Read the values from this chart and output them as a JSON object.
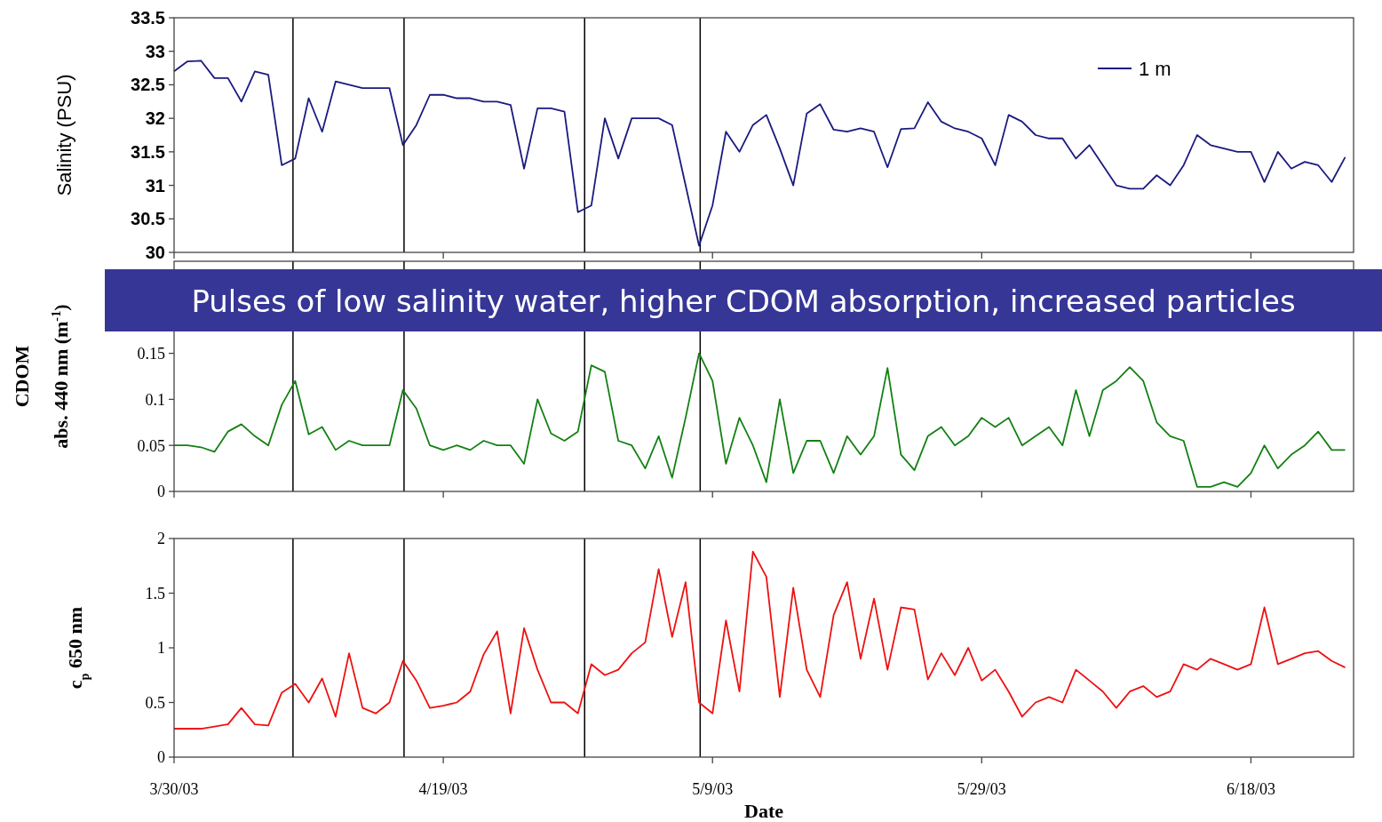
{
  "chart_data": [
    {
      "type": "line",
      "ylabel": "Salinity (PSU)",
      "xlim": [
        "2003-03-30",
        "2003-06-25T15:00"
      ],
      "xticks": [
        {
          "value": "2003-03-30",
          "label": null
        },
        {
          "value": "2003-04-19",
          "label": null
        },
        {
          "value": "2003-05-09",
          "label": null
        },
        {
          "value": "2003-05-29",
          "label": null
        },
        {
          "value": "2003-06-18",
          "label": null
        }
      ],
      "ylim": [
        30,
        33.5
      ],
      "yticks": [
        30,
        30.5,
        31,
        31.5,
        32,
        32.5,
        33,
        33.5
      ],
      "tick_labels": "y",
      "legend": "top right",
      "ref_lines": [
        {
          "axis": "x",
          "value": "2003-04-07T20:00"
        },
        {
          "axis": "x",
          "value": "2003-04-16T02:00"
        },
        {
          "axis": "x",
          "value": "2003-04-29T12:00"
        },
        {
          "axis": "x",
          "value": "2003-05-08T02:00"
        }
      ],
      "x": [
        "2003-03-30",
        "2003-03-31",
        "2003-04-01",
        "2003-04-02",
        "2003-04-03",
        "2003-04-04",
        "2003-04-05",
        "2003-04-06",
        "2003-04-07",
        "2003-04-08",
        "2003-04-09",
        "2003-04-10",
        "2003-04-11",
        "2003-04-12",
        "2003-04-13",
        "2003-04-14",
        "2003-04-15",
        "2003-04-16",
        "2003-04-17",
        "2003-04-18",
        "2003-04-19",
        "2003-04-20",
        "2003-04-21",
        "2003-04-22",
        "2003-04-23",
        "2003-04-24",
        "2003-04-25",
        "2003-04-26",
        "2003-04-27",
        "2003-04-28",
        "2003-04-29",
        "2003-04-30",
        "2003-05-01",
        "2003-05-02",
        "2003-05-03",
        "2003-05-04",
        "2003-05-05",
        "2003-05-06",
        "2003-05-07",
        "2003-05-08",
        "2003-05-09",
        "2003-05-10",
        "2003-05-11",
        "2003-05-12",
        "2003-05-13",
        "2003-05-14",
        "2003-05-15",
        "2003-05-16",
        "2003-05-17",
        "2003-05-18",
        "2003-05-19",
        "2003-05-20",
        "2003-05-21",
        "2003-05-22",
        "2003-05-23",
        "2003-05-24",
        "2003-05-25",
        "2003-05-26",
        "2003-05-27",
        "2003-05-28",
        "2003-05-29",
        "2003-05-30",
        "2003-05-31",
        "2003-06-01",
        "2003-06-02",
        "2003-06-03",
        "2003-06-04",
        "2003-06-05",
        "2003-06-06",
        "2003-06-07",
        "2003-06-08",
        "2003-06-09",
        "2003-06-10",
        "2003-06-11",
        "2003-06-12",
        "2003-06-13",
        "2003-06-14",
        "2003-06-15",
        "2003-06-16",
        "2003-06-17",
        "2003-06-18",
        "2003-06-19",
        "2003-06-20",
        "2003-06-21",
        "2003-06-22",
        "2003-06-23",
        "2003-06-24",
        "2003-06-25"
      ],
      "series": [
        {
          "name": "1 m",
          "color": "#1a1a80",
          "values": [
            32.7,
            32.85,
            32.86,
            32.6,
            32.6,
            32.25,
            32.7,
            32.65,
            31.3,
            31.4,
            32.3,
            31.8,
            32.55,
            32.5,
            32.45,
            32.45,
            32.45,
            31.6,
            31.9,
            32.35,
            32.35,
            32.3,
            32.3,
            32.25,
            32.25,
            32.2,
            31.25,
            32.15,
            32.15,
            32.1,
            30.6,
            30.7,
            32.0,
            31.4,
            32.0,
            32.0,
            32.0,
            31.9,
            31.0,
            30.1,
            30.7,
            31.8,
            31.5,
            31.9,
            32.05,
            31.55,
            31.0,
            32.07,
            32.21,
            31.83,
            31.8,
            31.85,
            31.8,
            31.27,
            31.84,
            31.85,
            32.24,
            31.95,
            31.85,
            31.8,
            31.7,
            31.3,
            32.05,
            31.95,
            31.75,
            31.7,
            31.7,
            31.4,
            31.6,
            31.3,
            31.0,
            30.95,
            30.95,
            31.15,
            31.0,
            31.3,
            31.75,
            31.6,
            31.55,
            31.5,
            31.5,
            31.05,
            31.5,
            31.25,
            31.35,
            31.3,
            31.05,
            31.42
          ]
        }
      ]
    },
    {
      "type": "line",
      "ylabel": "CDOM\nabs. 440 nm (m$^{-1}$)",
      "annotations": [
        "Pulses of low salinity water, higher CDOM absorption, increased particles"
      ],
      "xlim": [
        "2003-03-30",
        "2003-06-25T15:00"
      ],
      "xticks": [
        {
          "value": "2003-03-30",
          "label": null
        },
        {
          "value": "2003-04-19",
          "label": null
        },
        {
          "value": "2003-05-09",
          "label": null
        },
        {
          "value": "2003-05-29",
          "label": null
        },
        {
          "value": "2003-06-18",
          "label": null
        }
      ],
      "ylim": [
        0,
        0.25
      ],
      "yticks": [
        0,
        0.05,
        0.1,
        0.15
      ],
      "tick_labels": "y",
      "ref_lines": [
        {
          "axis": "x",
          "value": "2003-04-07T20:00"
        },
        {
          "axis": "x",
          "value": "2003-04-16T02:00"
        },
        {
          "axis": "x",
          "value": "2003-04-29T12:00"
        },
        {
          "axis": "x",
          "value": "2003-05-08T02:00"
        }
      ],
      "x": [
        "2003-03-30",
        "2003-03-31",
        "2003-04-01",
        "2003-04-02",
        "2003-04-03",
        "2003-04-04",
        "2003-04-05",
        "2003-04-06",
        "2003-04-07",
        "2003-04-08",
        "2003-04-09",
        "2003-04-10",
        "2003-04-11",
        "2003-04-12",
        "2003-04-13",
        "2003-04-14",
        "2003-04-15",
        "2003-04-16",
        "2003-04-17",
        "2003-04-18",
        "2003-04-19",
        "2003-04-20",
        "2003-04-21",
        "2003-04-22",
        "2003-04-23",
        "2003-04-24",
        "2003-04-25",
        "2003-04-26",
        "2003-04-27",
        "2003-04-28",
        "2003-04-29",
        "2003-04-30",
        "2003-05-01",
        "2003-05-02",
        "2003-05-03",
        "2003-05-04",
        "2003-05-05",
        "2003-05-06",
        "2003-05-07",
        "2003-05-08",
        "2003-05-09",
        "2003-05-10",
        "2003-05-11",
        "2003-05-12",
        "2003-05-13",
        "2003-05-14",
        "2003-05-15",
        "2003-05-16",
        "2003-05-17",
        "2003-05-18",
        "2003-05-19",
        "2003-05-20",
        "2003-05-21",
        "2003-05-22",
        "2003-05-23",
        "2003-05-24",
        "2003-05-25",
        "2003-05-26",
        "2003-05-27",
        "2003-05-28",
        "2003-05-29",
        "2003-05-30",
        "2003-05-31",
        "2003-06-01",
        "2003-06-02",
        "2003-06-03",
        "2003-06-04",
        "2003-06-05",
        "2003-06-06",
        "2003-06-07",
        "2003-06-08",
        "2003-06-09",
        "2003-06-10",
        "2003-06-11",
        "2003-06-12",
        "2003-06-13",
        "2003-06-14",
        "2003-06-15",
        "2003-06-16",
        "2003-06-17",
        "2003-06-18",
        "2003-06-19",
        "2003-06-20",
        "2003-06-21",
        "2003-06-22",
        "2003-06-23",
        "2003-06-24",
        "2003-06-25"
      ],
      "series": [
        {
          "color": "#138013",
          "values": [
            0.05,
            0.05,
            0.048,
            0.043,
            0.065,
            0.073,
            0.06,
            0.05,
            0.094,
            0.12,
            0.062,
            0.07,
            0.045,
            0.055,
            0.05,
            0.05,
            0.05,
            0.11,
            0.09,
            0.05,
            0.045,
            0.05,
            0.045,
            0.055,
            0.05,
            0.05,
            0.03,
            0.1,
            0.063,
            0.055,
            0.065,
            0.137,
            0.13,
            0.055,
            0.05,
            0.025,
            0.06,
            0.015,
            0.08,
            0.15,
            0.12,
            0.03,
            0.08,
            0.05,
            0.01,
            0.1,
            0.02,
            0.055,
            0.055,
            0.02,
            0.06,
            0.04,
            0.06,
            0.134,
            0.04,
            0.023,
            0.06,
            0.07,
            0.05,
            0.06,
            0.08,
            0.07,
            0.08,
            0.05,
            0.06,
            0.07,
            0.05,
            0.11,
            0.06,
            0.11,
            0.12,
            0.135,
            0.12,
            0.075,
            0.06,
            0.055,
            0.005,
            0.005,
            0.01,
            0.005,
            0.02,
            0.05,
            0.025,
            0.04,
            0.05,
            0.065,
            0.045,
            0.045
          ]
        }
      ]
    },
    {
      "type": "line",
      "ylabel": "c$_{p}$ 650 nm",
      "xlabel": "Date",
      "xlim": [
        "2003-03-30",
        "2003-06-25T15:00"
      ],
      "xticks": [
        {
          "value": "2003-03-30",
          "label": "3/30/03"
        },
        {
          "value": "2003-04-19",
          "label": "4/19/03"
        },
        {
          "value": "2003-05-09",
          "label": "5/9/03"
        },
        {
          "value": "2003-05-29",
          "label": "5/29/03"
        },
        {
          "value": "2003-06-18",
          "label": "6/18/03"
        }
      ],
      "ylim": [
        0,
        2
      ],
      "yticks": [
        0,
        0.5,
        1,
        1.5,
        2
      ],
      "ref_lines": [
        {
          "axis": "x",
          "value": "2003-04-07T20:00"
        },
        {
          "axis": "x",
          "value": "2003-04-16T02:00"
        },
        {
          "axis": "x",
          "value": "2003-04-29T12:00"
        },
        {
          "axis": "x",
          "value": "2003-05-08T02:00"
        }
      ],
      "x": [
        "2003-03-30",
        "2003-03-31",
        "2003-04-01",
        "2003-04-02",
        "2003-04-03",
        "2003-04-04",
        "2003-04-05",
        "2003-04-06",
        "2003-04-07",
        "2003-04-08",
        "2003-04-09",
        "2003-04-10",
        "2003-04-11",
        "2003-04-12",
        "2003-04-13",
        "2003-04-14",
        "2003-04-15",
        "2003-04-16",
        "2003-04-17",
        "2003-04-18",
        "2003-04-19",
        "2003-04-20",
        "2003-04-21",
        "2003-04-22",
        "2003-04-23",
        "2003-04-24",
        "2003-04-25",
        "2003-04-26",
        "2003-04-27",
        "2003-04-28",
        "2003-04-29",
        "2003-04-30",
        "2003-05-01",
        "2003-05-02",
        "2003-05-03",
        "2003-05-04",
        "2003-05-05",
        "2003-05-06",
        "2003-05-07",
        "2003-05-08",
        "2003-05-09",
        "2003-05-10",
        "2003-05-11",
        "2003-05-12",
        "2003-05-13",
        "2003-05-14",
        "2003-05-15",
        "2003-05-16",
        "2003-05-17",
        "2003-05-18",
        "2003-05-19",
        "2003-05-20",
        "2003-05-21",
        "2003-05-22",
        "2003-05-23",
        "2003-05-24",
        "2003-05-25",
        "2003-05-26",
        "2003-05-27",
        "2003-05-28",
        "2003-05-29",
        "2003-05-30",
        "2003-05-31",
        "2003-06-01",
        "2003-06-02",
        "2003-06-03",
        "2003-06-04",
        "2003-06-05",
        "2003-06-06",
        "2003-06-07",
        "2003-06-08",
        "2003-06-09",
        "2003-06-10",
        "2003-06-11",
        "2003-06-12",
        "2003-06-13",
        "2003-06-14",
        "2003-06-15",
        "2003-06-16",
        "2003-06-17",
        "2003-06-18",
        "2003-06-19",
        "2003-06-20",
        "2003-06-21",
        "2003-06-22",
        "2003-06-23",
        "2003-06-24",
        "2003-06-25"
      ],
      "series": [
        {
          "color": "#ee1111",
          "values": [
            0.26,
            0.26,
            0.26,
            0.28,
            0.3,
            0.45,
            0.3,
            0.29,
            0.59,
            0.67,
            0.5,
            0.72,
            0.37,
            0.95,
            0.45,
            0.4,
            0.5,
            0.88,
            0.7,
            0.45,
            0.47,
            0.5,
            0.6,
            0.94,
            1.15,
            0.4,
            1.18,
            0.8,
            0.5,
            0.5,
            0.4,
            0.85,
            0.75,
            0.8,
            0.95,
            1.05,
            1.72,
            1.1,
            1.6,
            0.5,
            0.4,
            1.25,
            0.6,
            1.88,
            1.65,
            0.55,
            1.55,
            0.8,
            0.55,
            1.3,
            1.6,
            0.9,
            1.45,
            0.8,
            1.37,
            1.35,
            0.71,
            0.95,
            0.75,
            1.0,
            0.7,
            0.8,
            0.6,
            0.37,
            0.5,
            0.55,
            0.5,
            0.8,
            0.7,
            0.6,
            0.45,
            0.6,
            0.65,
            0.55,
            0.6,
            0.85,
            0.8,
            0.9,
            0.85,
            0.8,
            0.85,
            1.37,
            0.85,
            0.9,
            0.95,
            0.97,
            0.88,
            0.82
          ]
        }
      ]
    }
  ]
}
